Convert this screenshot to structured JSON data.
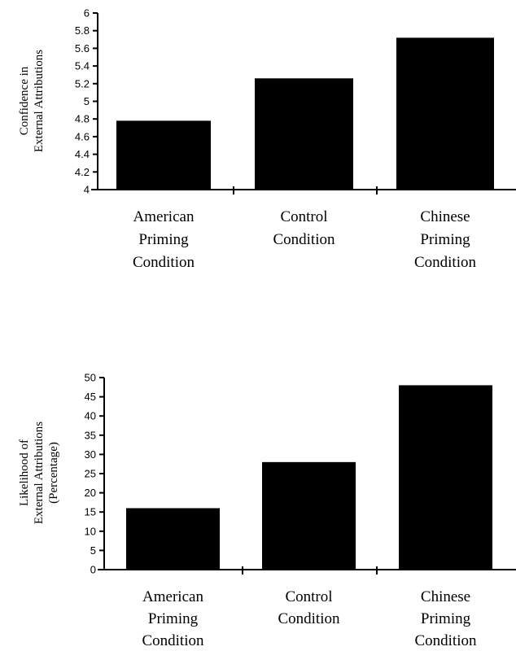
{
  "chart_data": [
    {
      "type": "bar",
      "categories": [
        [
          "American",
          "Priming",
          "Condition"
        ],
        [
          "Control",
          "Condition"
        ],
        [
          "Chinese",
          "Priming",
          "Condition"
        ]
      ],
      "values": [
        4.78,
        5.26,
        5.72
      ],
      "ylabel": [
        "Confidence in",
        "External Attributions"
      ],
      "ylim": [
        4,
        6
      ],
      "yticks": [
        "4",
        "4.2",
        "4.4",
        "4.6",
        "4.8",
        "5",
        "5.2",
        "5.4",
        "5.6",
        "5.8",
        "6"
      ],
      "grid": false,
      "colors": {
        "bar": "#000000",
        "axis": "#000000"
      }
    },
    {
      "type": "bar",
      "categories": [
        [
          "American",
          "Priming",
          "Condition"
        ],
        [
          "Control",
          "Condition"
        ],
        [
          "Chinese",
          "Priming",
          "Condition"
        ]
      ],
      "values": [
        16,
        28,
        48
      ],
      "ylabel": [
        "Likelihood of",
        "External Attributions",
        "(Percentage)"
      ],
      "ylim": [
        0,
        50
      ],
      "yticks": [
        "0",
        "5",
        "10",
        "15",
        "20",
        "25",
        "30",
        "35",
        "40",
        "45",
        "50"
      ],
      "grid": false,
      "colors": {
        "bar": "#000000",
        "axis": "#000000"
      }
    }
  ]
}
